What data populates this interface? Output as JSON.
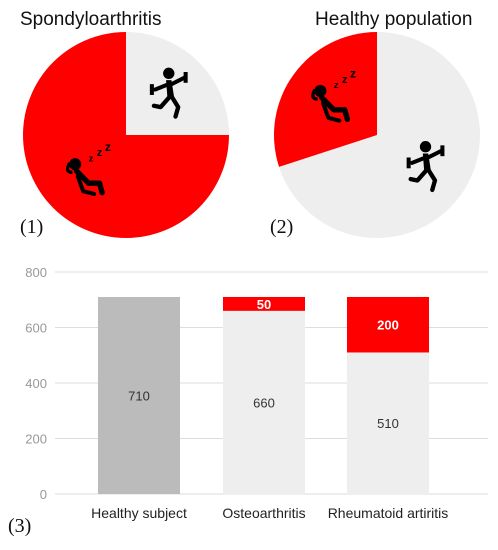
{
  "chart_data": [
    {
      "type": "pie",
      "panel_label": "(1)",
      "title": "Spondyloarthritis",
      "categories": [
        "Sleep / rest",
        "Physical activity"
      ],
      "values": [
        0.75,
        0.25
      ],
      "colors": [
        "#ff0000",
        "#eeeeee"
      ],
      "icons": [
        "sleeping-person-icon",
        "exercising-person-icon"
      ]
    },
    {
      "type": "pie",
      "panel_label": "(2)",
      "title": "Healthy population",
      "categories": [
        "Sleep / rest",
        "Physical activity"
      ],
      "values": [
        0.3,
        0.7
      ],
      "colors": [
        "#ff0000",
        "#eeeeee"
      ],
      "icons": [
        "sleeping-person-icon",
        "exercising-person-icon"
      ]
    },
    {
      "type": "bar",
      "stacked": true,
      "panel_label": "(3)",
      "categories": [
        "Healthy subject",
        "Osteoarthritis",
        "Rheumatoid artiritis"
      ],
      "series": [
        {
          "values": [
            710,
            660,
            510
          ],
          "colors": [
            "#bbbbbb",
            "#eeeeee",
            "#eeeeee"
          ],
          "labels": [
            "710",
            "660",
            "510"
          ]
        },
        {
          "values": [
            0,
            50,
            200
          ],
          "color": "#ff0000",
          "labels": [
            "",
            "50",
            "200"
          ]
        }
      ],
      "ylim": [
        0,
        800
      ],
      "yticks": [
        0,
        200,
        400,
        600,
        800
      ],
      "grid": true
    }
  ]
}
